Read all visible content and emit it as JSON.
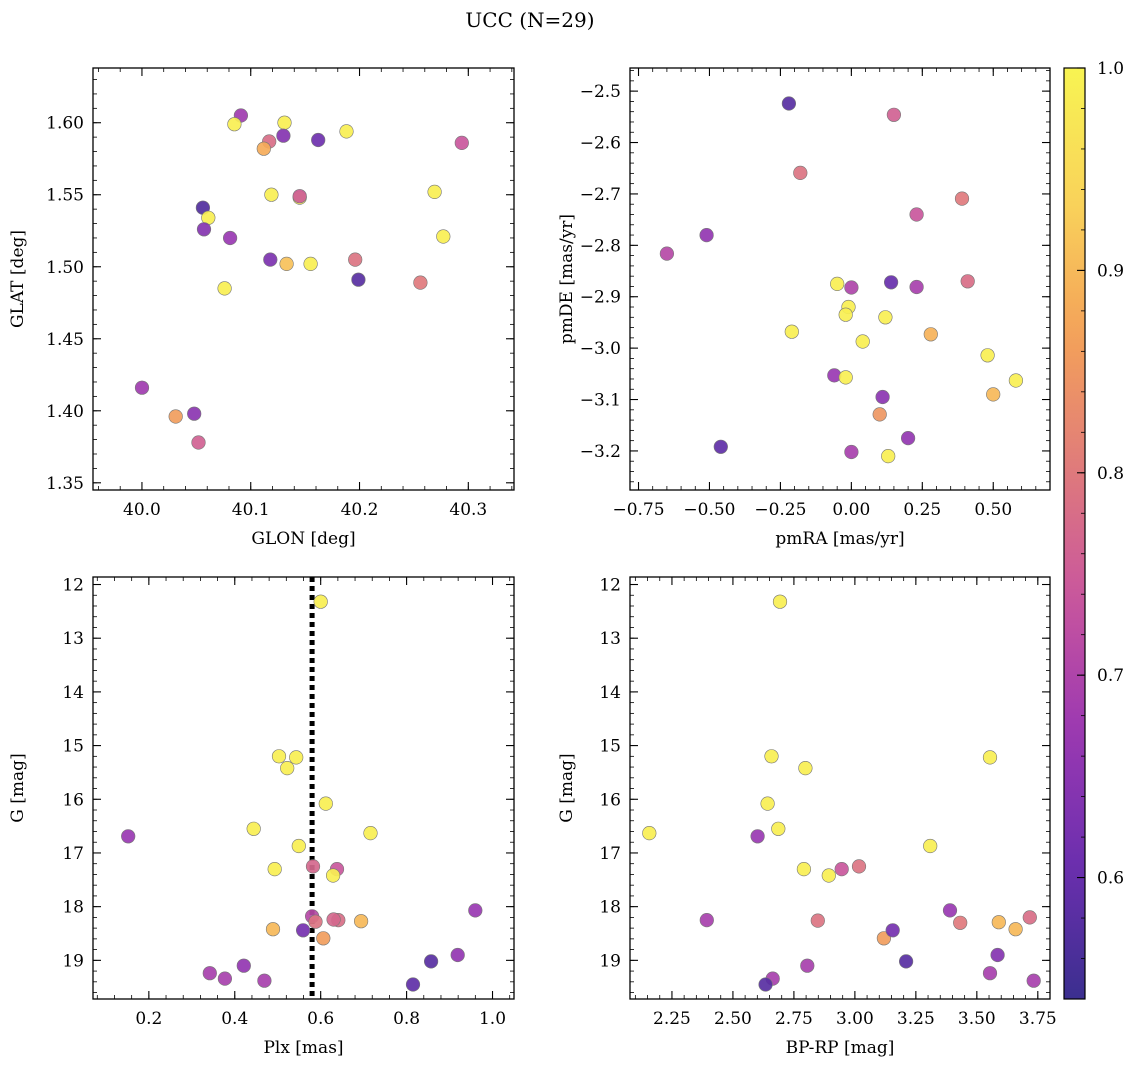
{
  "figure": {
    "title": "UCC (N=29)"
  },
  "colormap": {
    "name": "plasma",
    "range": [
      0.54,
      1.0
    ],
    "ticks": [
      0.6,
      0.7,
      0.8,
      0.9,
      1.0
    ],
    "tick_labels": [
      "0.6",
      "0.7",
      "0.8",
      "0.9",
      "1.0"
    ],
    "stops": [
      "#3b2f8f",
      "#6b2fae",
      "#9a38b2",
      "#c8559e",
      "#e07b7b",
      "#f4a259",
      "#f9d35a",
      "#f8f452"
    ]
  },
  "chart_data": [
    {
      "type": "scatter",
      "xlabel": "GLON [deg]",
      "ylabel": "GLAT [deg]",
      "xlim": [
        39.955,
        40.342
      ],
      "ylim": [
        1.345,
        1.638
      ],
      "xticks": [
        40.0,
        40.1,
        40.2,
        40.3
      ],
      "xtick_labels": [
        "40.0",
        "40.1",
        "40.2",
        "40.3"
      ],
      "yticks": [
        1.35,
        1.4,
        1.45,
        1.5,
        1.55,
        1.6
      ],
      "ytick_labels": [
        "1.35",
        "1.40",
        "1.45",
        "1.50",
        "1.55",
        "1.60"
      ],
      "x": [
        40.091,
        40.131,
        40.085,
        40.188,
        40.117,
        40.13,
        40.162,
        40.294,
        40.112,
        40.269,
        40.119,
        40.145,
        40.056,
        40.061,
        40.057,
        40.081,
        40.277,
        40.118,
        40.133,
        40.155,
        40.196,
        40.199,
        40.256,
        40.076,
        40.0,
        40.048,
        40.031,
        40.052,
        40.145
      ],
      "y": [
        1.605,
        1.6,
        1.599,
        1.594,
        1.587,
        1.591,
        1.588,
        1.586,
        1.582,
        1.552,
        1.55,
        1.548,
        1.541,
        1.534,
        1.526,
        1.52,
        1.521,
        1.505,
        1.502,
        1.502,
        1.505,
        1.491,
        1.489,
        1.485,
        1.416,
        1.398,
        1.396,
        1.378,
        1.549
      ],
      "c": [
        0.68,
        0.99,
        0.99,
        0.99,
        0.78,
        0.64,
        0.61,
        0.74,
        0.88,
        0.99,
        0.99,
        0.98,
        0.57,
        0.99,
        0.64,
        0.67,
        0.99,
        0.63,
        0.91,
        0.99,
        0.79,
        0.58,
        0.8,
        0.99,
        0.68,
        0.65,
        0.86,
        0.76,
        0.75
      ]
    },
    {
      "type": "scatter",
      "xlabel": "pmRA [mas/yr]",
      "ylabel": "pmDE [mas/yr]",
      "xlim": [
        -0.78,
        0.7
      ],
      "ylim": [
        -3.276,
        -2.455
      ],
      "xticks": [
        -0.75,
        -0.5,
        -0.25,
        0.0,
        0.25,
        0.5
      ],
      "xtick_labels": [
        "−0.75",
        "−0.50",
        "−0.25",
        "0.00",
        "0.25",
        "0.50"
      ],
      "yticks": [
        -3.2,
        -3.1,
        -3.0,
        -2.9,
        -2.8,
        -2.7,
        -2.6,
        -2.5
      ],
      "ytick_labels": [
        "−3.2",
        "−3.1",
        "−3.0",
        "−2.9",
        "−2.8",
        "−2.7",
        "−2.6",
        "−2.5"
      ],
      "x": [
        -0.22,
        0.15,
        -0.18,
        0.39,
        0.23,
        -0.51,
        -0.65,
        0.41,
        0.14,
        0.23,
        -0.05,
        0.0,
        -0.01,
        -0.02,
        0.12,
        0.04,
        0.28,
        -0.21,
        0.48,
        -0.06,
        -0.02,
        0.5,
        0.58,
        0.11,
        0.1,
        0.2,
        -0.46,
        0.0,
        0.13
      ],
      "y": [
        -2.524,
        -2.546,
        -2.659,
        -2.709,
        -2.74,
        -2.78,
        -2.816,
        -2.87,
        -2.872,
        -2.881,
        -2.875,
        -2.882,
        -2.92,
        -2.935,
        -2.94,
        -2.987,
        -2.973,
        -2.968,
        -3.014,
        -3.053,
        -3.057,
        -3.09,
        -3.063,
        -3.095,
        -3.129,
        -3.175,
        -3.192,
        -3.202,
        -3.21
      ],
      "c": [
        0.58,
        0.76,
        0.79,
        0.8,
        0.74,
        0.66,
        0.71,
        0.78,
        0.6,
        0.69,
        0.99,
        0.7,
        0.99,
        0.99,
        0.99,
        0.99,
        0.89,
        0.99,
        0.99,
        0.67,
        0.99,
        0.9,
        0.99,
        0.65,
        0.85,
        0.66,
        0.59,
        0.69,
        0.99
      ]
    },
    {
      "type": "scatter",
      "xlabel": "Plx [mas]",
      "ylabel": "G [mag]",
      "xlim": [
        0.07,
        1.05
      ],
      "ylim": [
        19.72,
        11.86
      ],
      "y_inverted": true,
      "xticks": [
        0.2,
        0.4,
        0.6,
        0.8,
        1.0
      ],
      "xtick_labels": [
        "0.2",
        "0.4",
        "0.6",
        "0.8",
        "1.0"
      ],
      "yticks": [
        12,
        13,
        14,
        15,
        16,
        17,
        18,
        19
      ],
      "ytick_labels": [
        "12",
        "13",
        "14",
        "15",
        "16",
        "17",
        "18",
        "19"
      ],
      "vline": 0.58,
      "x": [
        0.6,
        0.503,
        0.543,
        0.522,
        0.612,
        0.444,
        0.152,
        0.716,
        0.549,
        0.582,
        0.638,
        0.493,
        0.629,
        0.58,
        0.641,
        0.694,
        0.588,
        0.489,
        0.606,
        0.559,
        0.96,
        0.919,
        0.857,
        0.421,
        0.342,
        0.377,
        0.469,
        0.815,
        0.63
      ],
      "y": [
        12.32,
        15.2,
        15.22,
        15.42,
        16.08,
        16.55,
        16.69,
        16.63,
        16.87,
        17.25,
        17.3,
        17.3,
        17.42,
        18.18,
        18.25,
        18.27,
        18.28,
        18.42,
        18.59,
        18.44,
        18.07,
        18.9,
        19.02,
        19.1,
        19.24,
        19.34,
        19.38,
        19.45,
        18.24
      ],
      "c": [
        0.99,
        0.99,
        0.99,
        0.99,
        0.99,
        0.99,
        0.67,
        0.99,
        0.99,
        0.77,
        0.74,
        0.99,
        0.99,
        0.71,
        0.78,
        0.9,
        0.79,
        0.9,
        0.86,
        0.62,
        0.67,
        0.66,
        0.58,
        0.66,
        0.69,
        0.69,
        0.69,
        0.59,
        0.77
      ]
    },
    {
      "type": "scatter",
      "xlabel": "BP-RP [mag]",
      "ylabel": "G [mag]",
      "xlim": [
        2.078,
        3.8
      ],
      "ylim": [
        19.72,
        11.86
      ],
      "y_inverted": true,
      "xticks": [
        2.25,
        2.5,
        2.75,
        3.0,
        3.25,
        3.5,
        3.75
      ],
      "xtick_labels": [
        "2.25",
        "2.50",
        "2.75",
        "3.00",
        "3.25",
        "3.50",
        "3.75"
      ],
      "yticks": [
        12,
        13,
        14,
        15,
        16,
        17,
        18,
        19
      ],
      "ytick_labels": [
        "12",
        "13",
        "14",
        "15",
        "16",
        "17",
        "18",
        "19"
      ],
      "x": [
        2.693,
        2.658,
        3.554,
        2.797,
        2.642,
        2.686,
        2.601,
        2.157,
        3.309,
        2.791,
        2.893,
        2.946,
        3.017,
        3.717,
        3.39,
        2.393,
        3.59,
        2.848,
        3.432,
        3.659,
        3.119,
        3.155,
        3.585,
        3.21,
        2.805,
        3.554,
        2.663,
        3.733,
        2.634
      ],
      "y": [
        12.32,
        15.2,
        15.22,
        15.42,
        16.08,
        16.55,
        16.69,
        16.63,
        16.87,
        17.3,
        17.42,
        17.3,
        17.25,
        18.2,
        18.07,
        18.25,
        18.29,
        18.26,
        18.3,
        18.42,
        18.59,
        18.44,
        18.9,
        19.02,
        19.1,
        19.24,
        19.34,
        19.38,
        19.45
      ],
      "c": [
        0.99,
        0.99,
        0.99,
        0.99,
        0.99,
        0.99,
        0.67,
        0.99,
        0.99,
        0.99,
        0.99,
        0.74,
        0.79,
        0.78,
        0.67,
        0.69,
        0.9,
        0.79,
        0.8,
        0.9,
        0.86,
        0.62,
        0.64,
        0.58,
        0.69,
        0.69,
        0.69,
        0.69,
        0.58
      ]
    }
  ]
}
